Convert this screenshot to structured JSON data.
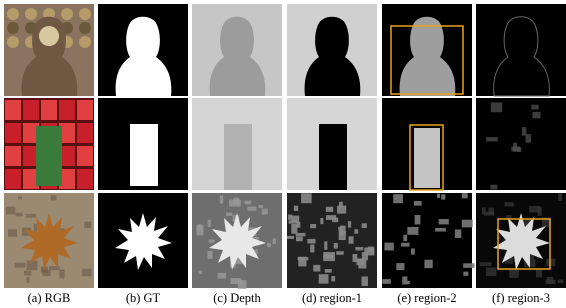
{
  "captions": [
    "(a) RGB",
    "(b) GT",
    "(c) Depth",
    "(d) region-1",
    "(e) region-2",
    "(f) region-3"
  ]
}
